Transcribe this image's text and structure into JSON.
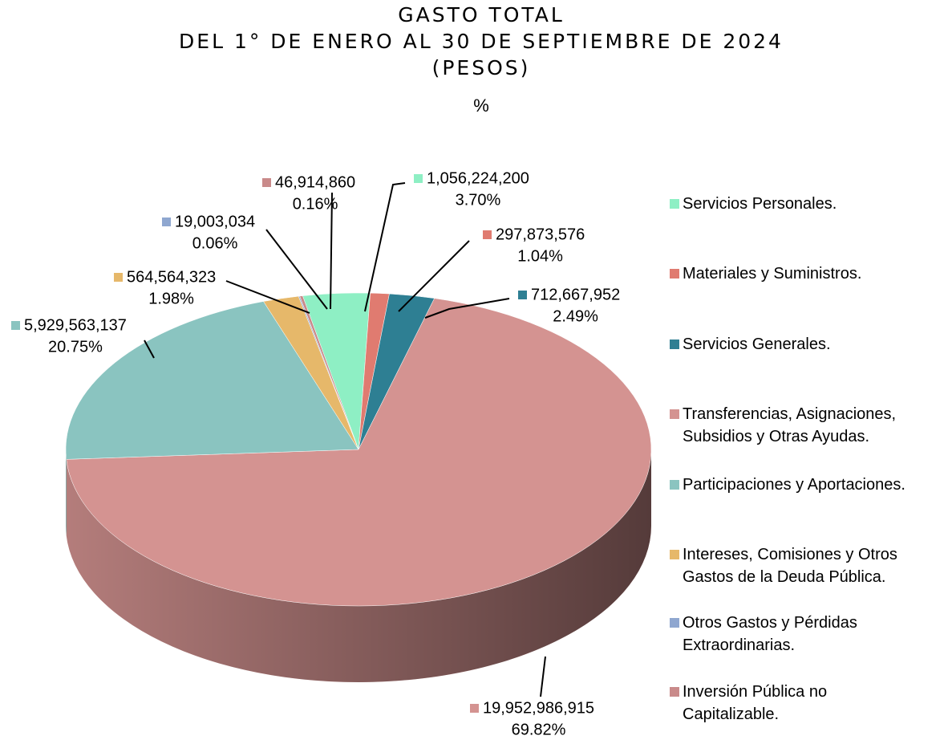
{
  "chart_data": {
    "type": "pie",
    "title": [
      "GASTO TOTAL",
      "DEL 1° DE ENERO AL 30 DE SEPTIEMBRE DE 2024",
      "(PESOS)",
      "%"
    ],
    "categories": [
      "Servicios Personales.",
      "Materiales y Suministros.",
      "Servicios Generales.",
      "Transferencias, Asignaciones,\nSubsidios y Otras Ayudas.",
      "Participaciones y Aportaciones.",
      "Intereses, Comisiones y Otros\nGastos de la Deuda Pública.",
      "Otros Gastos y Pérdidas\nExtraordinarias.",
      "Inversión Pública no\nCapitalizable."
    ],
    "values": [
      1056224200,
      297873576,
      712667952,
      19952986915,
      5929563137,
      564564323,
      19003034,
      46914860
    ],
    "value_labels": [
      "1,056,224,200",
      "297,873,576",
      "712,667,952",
      "19,952,986,915",
      "5,929,563,137",
      "564,564,323",
      "19,003,034",
      "46,914,860"
    ],
    "percents": [
      3.7,
      1.04,
      2.49,
      69.82,
      20.75,
      1.98,
      0.06,
      0.16
    ],
    "percent_labels": [
      "3.70%",
      "1.04%",
      "2.49%",
      "69.82%",
      "20.75%",
      "1.98%",
      "0.06%",
      "0.16%"
    ],
    "colors": [
      "#8eefc4",
      "#e07b70",
      "#2e7f93",
      "#d49391",
      "#8ac4c0",
      "#e6b86a",
      "#8fa7d0",
      "#c98a8a"
    ],
    "legend": "right"
  }
}
